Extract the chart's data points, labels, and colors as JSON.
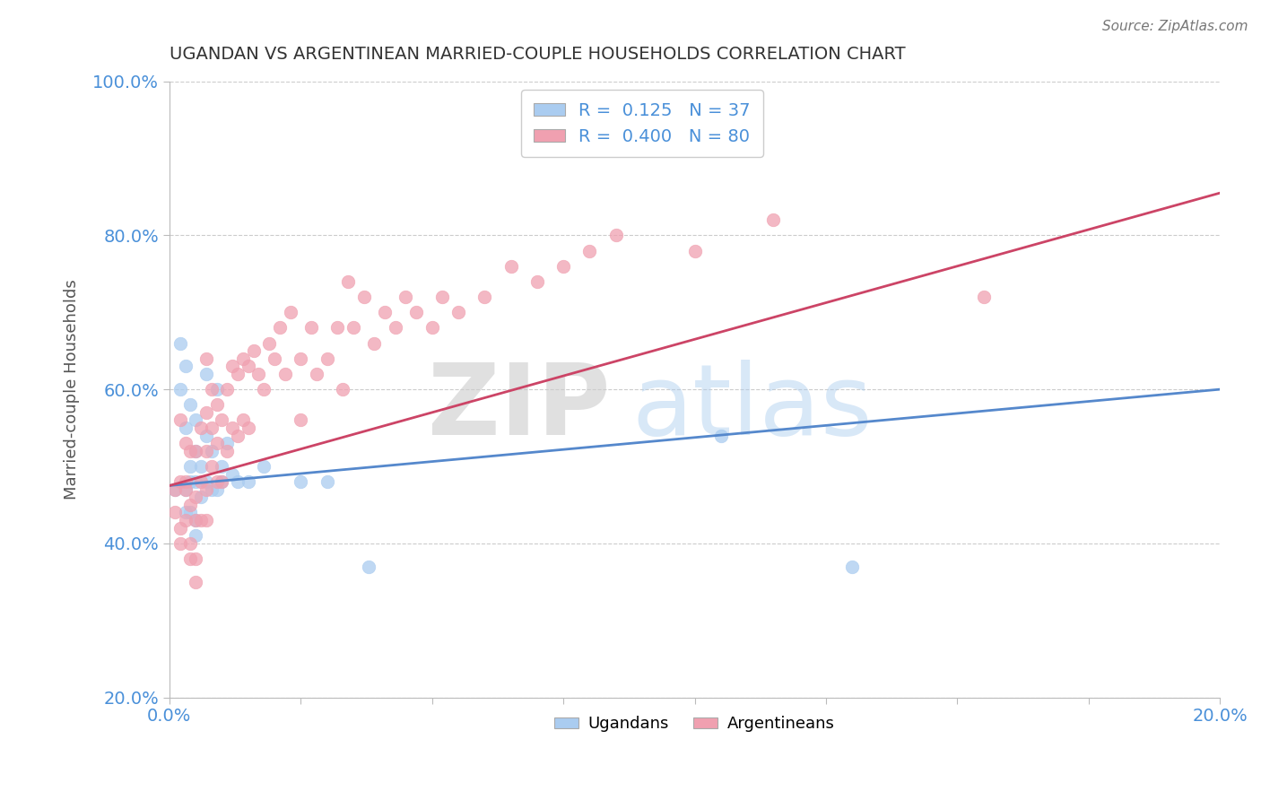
{
  "title": "UGANDAN VS ARGENTINEAN MARRIED-COUPLE HOUSEHOLDS CORRELATION CHART",
  "source": "Source: ZipAtlas.com",
  "ylabel": "Married-couple Households",
  "xlim": [
    0.0,
    0.2
  ],
  "ylim": [
    0.2,
    1.0
  ],
  "xticks": [
    0.0,
    0.025,
    0.05,
    0.075,
    0.1,
    0.125,
    0.15,
    0.175,
    0.2
  ],
  "yticks": [
    0.2,
    0.4,
    0.6,
    0.8,
    1.0
  ],
  "ugandan_color": "#aaccf0",
  "argentinean_color": "#f0a0b0",
  "ugandan_line_color": "#5588cc",
  "argentinean_line_color": "#cc4466",
  "watermark_zip": "ZIP",
  "watermark_atlas": "atlas",
  "legend_r_ugandan": "0.125",
  "legend_n_ugandan": "37",
  "legend_r_argentinean": "0.400",
  "legend_n_argentinean": "80",
  "ugandan_points_x": [
    0.001,
    0.002,
    0.002,
    0.003,
    0.003,
    0.003,
    0.003,
    0.004,
    0.004,
    0.004,
    0.004,
    0.005,
    0.005,
    0.005,
    0.005,
    0.005,
    0.006,
    0.006,
    0.007,
    0.007,
    0.007,
    0.008,
    0.008,
    0.009,
    0.009,
    0.01,
    0.01,
    0.011,
    0.012,
    0.013,
    0.015,
    0.018,
    0.025,
    0.03,
    0.038,
    0.105,
    0.13
  ],
  "ugandan_points_y": [
    0.47,
    0.6,
    0.66,
    0.55,
    0.63,
    0.47,
    0.44,
    0.5,
    0.58,
    0.48,
    0.44,
    0.48,
    0.52,
    0.56,
    0.43,
    0.41,
    0.5,
    0.46,
    0.62,
    0.54,
    0.48,
    0.52,
    0.47,
    0.6,
    0.47,
    0.5,
    0.48,
    0.53,
    0.49,
    0.48,
    0.48,
    0.5,
    0.48,
    0.48,
    0.37,
    0.54,
    0.37
  ],
  "argentinean_points_x": [
    0.001,
    0.001,
    0.002,
    0.002,
    0.002,
    0.002,
    0.003,
    0.003,
    0.003,
    0.003,
    0.004,
    0.004,
    0.004,
    0.004,
    0.005,
    0.005,
    0.005,
    0.005,
    0.005,
    0.006,
    0.006,
    0.006,
    0.007,
    0.007,
    0.007,
    0.007,
    0.007,
    0.008,
    0.008,
    0.008,
    0.009,
    0.009,
    0.009,
    0.01,
    0.01,
    0.011,
    0.011,
    0.012,
    0.012,
    0.013,
    0.013,
    0.014,
    0.014,
    0.015,
    0.015,
    0.016,
    0.017,
    0.018,
    0.019,
    0.02,
    0.021,
    0.022,
    0.023,
    0.025,
    0.025,
    0.027,
    0.028,
    0.03,
    0.032,
    0.033,
    0.034,
    0.035,
    0.037,
    0.039,
    0.041,
    0.043,
    0.045,
    0.047,
    0.05,
    0.052,
    0.055,
    0.06,
    0.065,
    0.07,
    0.075,
    0.08,
    0.085,
    0.1,
    0.115,
    0.155
  ],
  "argentinean_points_y": [
    0.47,
    0.44,
    0.56,
    0.48,
    0.42,
    0.4,
    0.48,
    0.53,
    0.47,
    0.43,
    0.52,
    0.45,
    0.4,
    0.38,
    0.52,
    0.46,
    0.43,
    0.38,
    0.35,
    0.55,
    0.48,
    0.43,
    0.64,
    0.57,
    0.52,
    0.47,
    0.43,
    0.6,
    0.55,
    0.5,
    0.58,
    0.53,
    0.48,
    0.56,
    0.48,
    0.6,
    0.52,
    0.63,
    0.55,
    0.62,
    0.54,
    0.64,
    0.56,
    0.63,
    0.55,
    0.65,
    0.62,
    0.6,
    0.66,
    0.64,
    0.68,
    0.62,
    0.7,
    0.64,
    0.56,
    0.68,
    0.62,
    0.64,
    0.68,
    0.6,
    0.74,
    0.68,
    0.72,
    0.66,
    0.7,
    0.68,
    0.72,
    0.7,
    0.68,
    0.72,
    0.7,
    0.72,
    0.76,
    0.74,
    0.76,
    0.78,
    0.8,
    0.78,
    0.82,
    0.72
  ],
  "ugandan_line_x": [
    0.0,
    0.2
  ],
  "ugandan_line_y": [
    0.475,
    0.6
  ],
  "argentinean_line_x": [
    0.0,
    0.2
  ],
  "argentinean_line_y": [
    0.475,
    0.855
  ],
  "background_color": "#ffffff",
  "grid_color": "#cccccc",
  "tick_color": "#4a90d9",
  "title_color": "#333333"
}
